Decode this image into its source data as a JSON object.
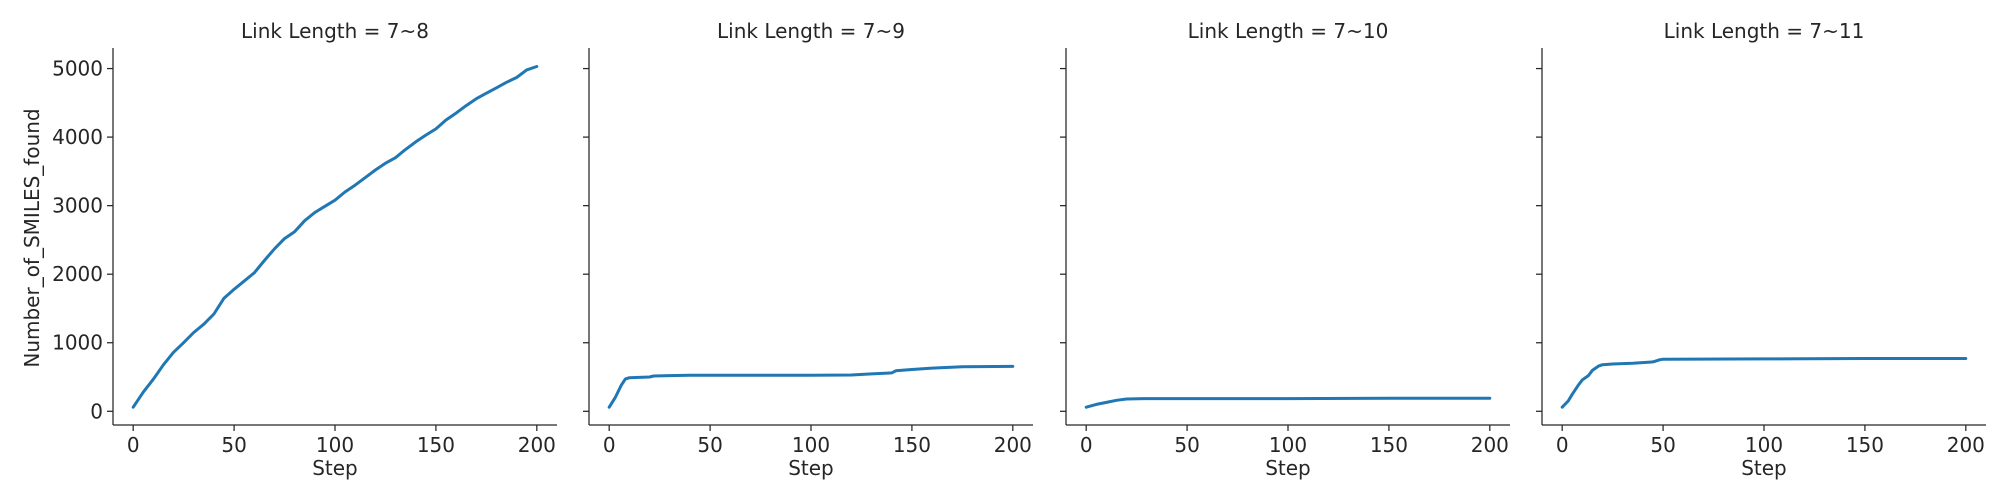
{
  "colors": {
    "series": "#1f77b4",
    "axes": "#262626"
  },
  "chart_data": [
    {
      "type": "line",
      "title": "Link Length = 7~8",
      "xlabel": "Step",
      "ylabel": "Number_of_SMILES_found",
      "xlim": [
        -10,
        210
      ],
      "ylim": [
        -200,
        5300
      ],
      "xticks": [
        0,
        50,
        100,
        150,
        200
      ],
      "yticks": [
        0,
        1000,
        2000,
        3000,
        4000,
        5000
      ],
      "grid": false,
      "series": [
        {
          "color": "#1f77b4",
          "x": [
            0,
            5,
            10,
            15,
            20,
            25,
            30,
            35,
            40,
            45,
            50,
            55,
            60,
            65,
            70,
            75,
            80,
            85,
            90,
            95,
            100,
            105,
            110,
            115,
            120,
            125,
            130,
            135,
            140,
            145,
            150,
            155,
            160,
            165,
            170,
            175,
            180,
            185,
            190,
            195,
            200
          ],
          "y": [
            60,
            280,
            470,
            680,
            860,
            1000,
            1150,
            1270,
            1420,
            1650,
            1780,
            1900,
            2020,
            2200,
            2370,
            2520,
            2620,
            2780,
            2900,
            2990,
            3080,
            3200,
            3300,
            3410,
            3520,
            3620,
            3700,
            3820,
            3930,
            4030,
            4120,
            4250,
            4350,
            4460,
            4560,
            4640,
            4720,
            4800,
            4870,
            4980,
            5030
          ]
        }
      ]
    },
    {
      "type": "line",
      "title": "Link Length = 7~9",
      "xlabel": "Step",
      "ylabel": "",
      "xlim": [
        -10,
        210
      ],
      "ylim": [
        -200,
        5300
      ],
      "xticks": [
        0,
        50,
        100,
        150,
        200
      ],
      "yticks": [
        0,
        1000,
        2000,
        3000,
        4000,
        5000
      ],
      "grid": false,
      "series": [
        {
          "color": "#1f77b4",
          "x": [
            0,
            3,
            6,
            8,
            10,
            15,
            20,
            22,
            30,
            40,
            50,
            75,
            100,
            120,
            130,
            140,
            142,
            150,
            160,
            175,
            200
          ],
          "y": [
            60,
            200,
            380,
            470,
            490,
            495,
            500,
            515,
            520,
            525,
            525,
            525,
            525,
            530,
            545,
            560,
            590,
            610,
            630,
            650,
            655
          ]
        }
      ]
    },
    {
      "type": "line",
      "title": "Link Length = 7~10",
      "xlabel": "Step",
      "ylabel": "",
      "xlim": [
        -10,
        210
      ],
      "ylim": [
        -200,
        5300
      ],
      "xticks": [
        0,
        50,
        100,
        150,
        200
      ],
      "yticks": [
        0,
        1000,
        2000,
        3000,
        4000,
        5000
      ],
      "grid": false,
      "series": [
        {
          "color": "#1f77b4",
          "x": [
            0,
            5,
            10,
            15,
            20,
            30,
            50,
            100,
            150,
            200
          ],
          "y": [
            60,
            100,
            130,
            160,
            180,
            185,
            185,
            185,
            190,
            190
          ]
        }
      ]
    },
    {
      "type": "line",
      "title": "Link Length = 7~11",
      "xlabel": "Step",
      "ylabel": "",
      "xlim": [
        -10,
        210
      ],
      "ylim": [
        -200,
        5300
      ],
      "xticks": [
        0,
        50,
        100,
        150,
        200
      ],
      "yticks": [
        0,
        1000,
        2000,
        3000,
        4000,
        5000
      ],
      "grid": false,
      "series": [
        {
          "color": "#1f77b4",
          "x": [
            0,
            3,
            5,
            8,
            10,
            13,
            15,
            18,
            20,
            25,
            35,
            45,
            48,
            50,
            100,
            150,
            200
          ],
          "y": [
            60,
            150,
            250,
            380,
            460,
            520,
            600,
            660,
            680,
            690,
            700,
            720,
            750,
            760,
            765,
            770,
            770
          ]
        }
      ]
    }
  ]
}
